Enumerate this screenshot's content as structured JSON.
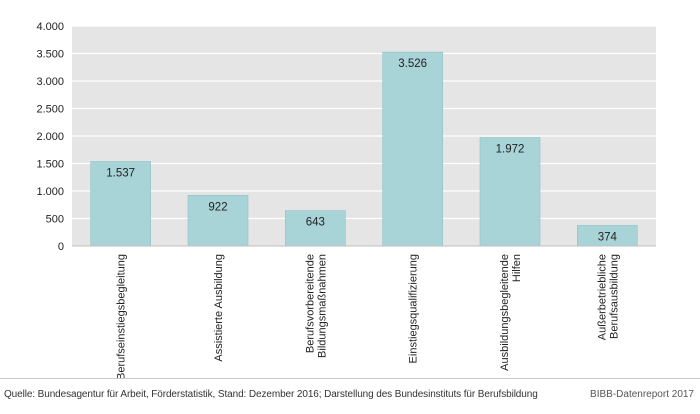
{
  "chart_data": {
    "type": "bar",
    "categories": [
      "Berufseinstiegsbegleitung",
      "Assistierte Ausbildung",
      "Berufsvorbereitende\nBildungsmaßnahmen",
      "Einstiegsqualifizierung",
      "Ausbildungsbegleitende\nHilfen",
      "Außerbetriebliche\nBerufsausbildung"
    ],
    "values": [
      1537,
      922,
      643,
      3526,
      1972,
      374
    ],
    "value_labels": [
      "1.537",
      "922",
      "643",
      "3.526",
      "1.972",
      "374"
    ],
    "ylim": [
      0,
      4000
    ],
    "yticks": [
      0,
      500,
      1000,
      1500,
      2000,
      2500,
      3000,
      3500,
      4000
    ],
    "ytick_labels": [
      "0",
      "500",
      "1.000",
      "1.500",
      "2.000",
      "2.500",
      "3.000",
      "3.500",
      "4.000"
    ],
    "grid": true,
    "colors": {
      "bar": "#a8d3d7",
      "bar_stroke": "#8fc2c7",
      "plot_background": "#e5e5e5",
      "grid": "#ffffff",
      "text": "#222222"
    }
  },
  "footer": {
    "source": "Quelle: Bundesagentur für Arbeit, Förderstatistik, Stand: Dezember 2016; Darstellung des Bundesinstituts für Berufsbildung",
    "credit": "BIBB-Datenreport 2017"
  }
}
